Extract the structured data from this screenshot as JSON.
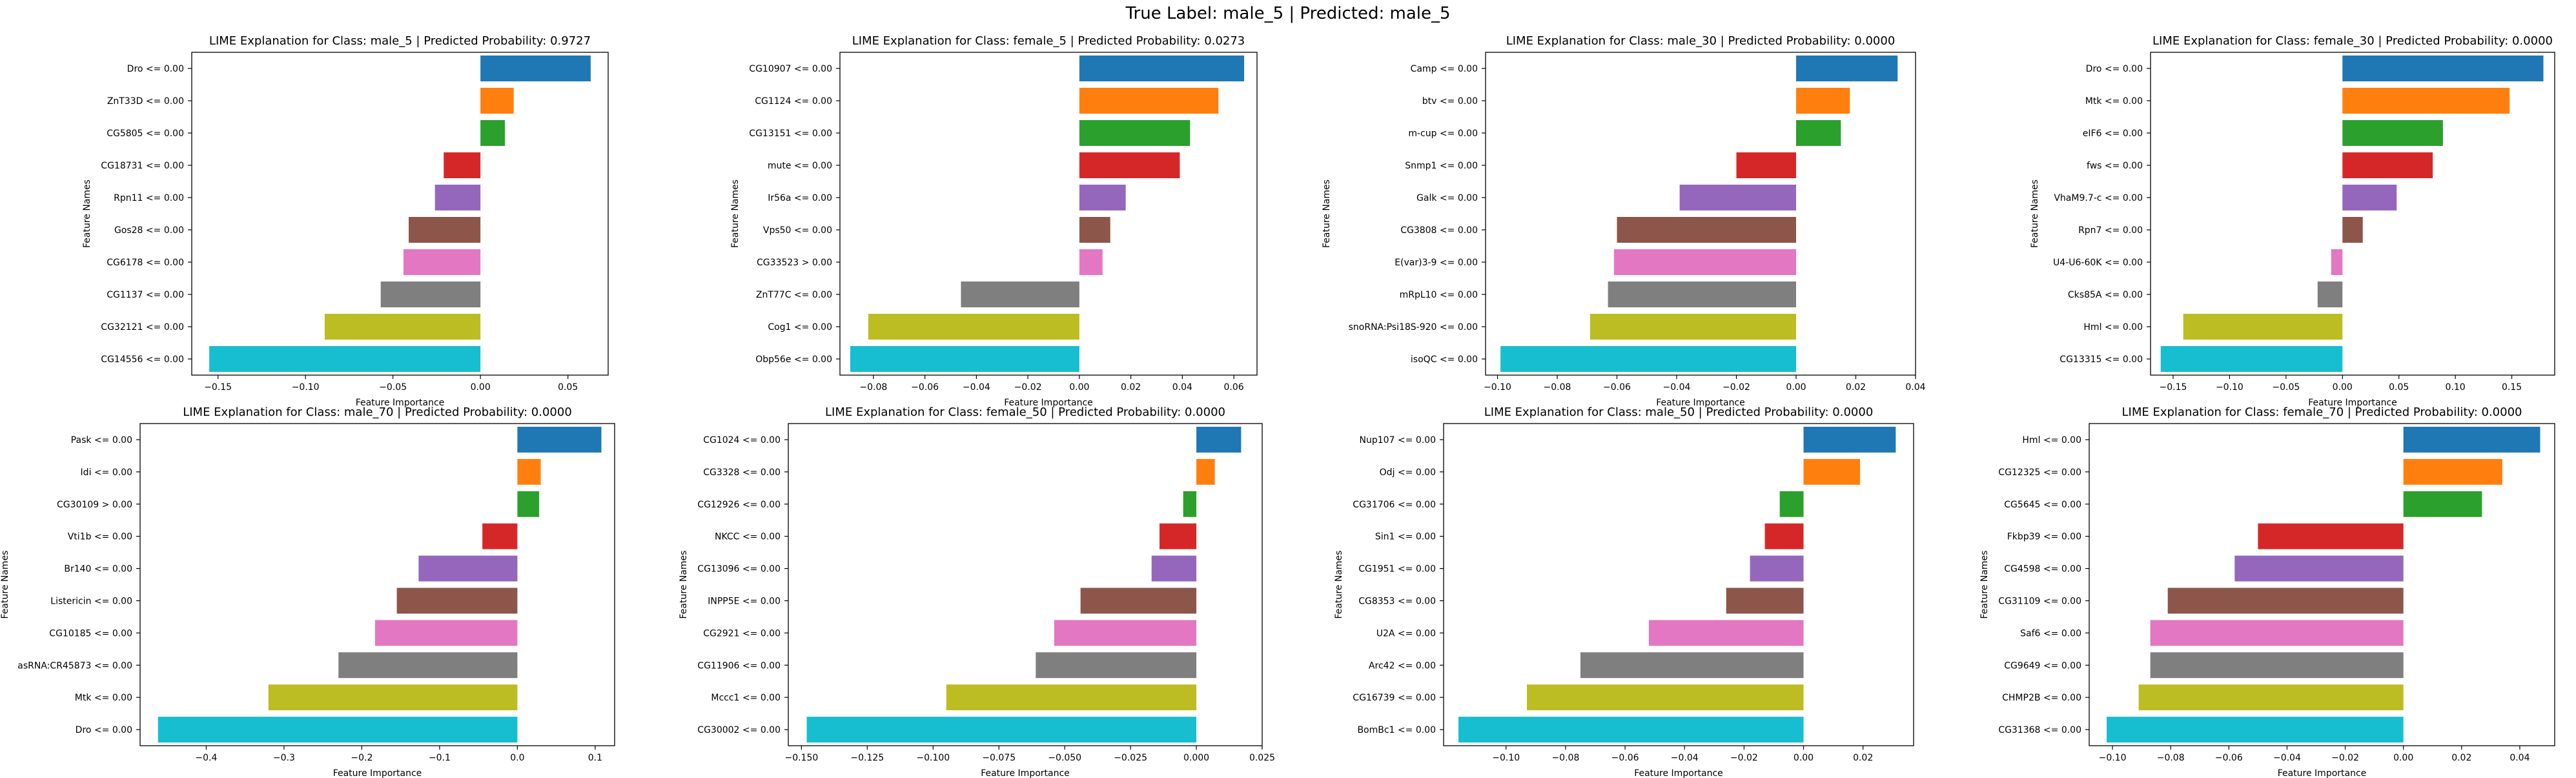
{
  "suptitle": "True Label: male_5 | Predicted: male_5",
  "chart_data": [
    {
      "type": "bar",
      "orientation": "horizontal",
      "title": "LIME Explanation for Class: male_5 | Predicted Probability: 0.9727",
      "xlabel": "Feature Importance",
      "ylabel": "Feature Names",
      "xlim": [
        -0.165,
        0.073
      ],
      "xticks": [
        -0.15,
        -0.1,
        -0.05,
        0.0,
        0.05
      ],
      "xtick_labels": [
        "−0.15",
        "−0.10",
        "−0.05",
        "0.00",
        "0.05"
      ],
      "categories": [
        "Dro <= 0.00",
        "ZnT33D <= 0.00",
        "CG5805 <= 0.00",
        "CG18731 <= 0.00",
        "Rpn11 <= 0.00",
        "Gos28 <= 0.00",
        "CG6178 <= 0.00",
        "CG1137 <= 0.00",
        "CG32121 <= 0.00",
        "CG14556 <= 0.00"
      ],
      "values": [
        0.063,
        0.019,
        0.014,
        -0.021,
        -0.026,
        -0.041,
        -0.044,
        -0.057,
        -0.089,
        -0.155
      ],
      "colors": [
        "#1f77b4",
        "#ff7f0e",
        "#2ca02c",
        "#d62728",
        "#9467bd",
        "#8c564b",
        "#e377c2",
        "#7f7f7f",
        "#bcbd22",
        "#17becf"
      ]
    },
    {
      "type": "bar",
      "orientation": "horizontal",
      "title": "LIME Explanation for Class: female_5 | Predicted Probability: 0.0273",
      "xlabel": "Feature Importance",
      "ylabel": "Feature Names",
      "xlim": [
        -0.093,
        0.069
      ],
      "xticks": [
        -0.08,
        -0.06,
        -0.04,
        -0.02,
        0.0,
        0.02,
        0.04,
        0.06
      ],
      "xtick_labels": [
        "−0.08",
        "−0.06",
        "−0.04",
        "−0.02",
        "0.00",
        "0.02",
        "0.04",
        "0.06"
      ],
      "categories": [
        "CG10907 <= 0.00",
        "CG1124 <= 0.00",
        "CG13151 <= 0.00",
        "mute <= 0.00",
        "Ir56a <= 0.00",
        "Vps50 <= 0.00",
        "CG33523 > 0.00",
        "ZnT77C <= 0.00",
        "Cog1 <= 0.00",
        "Obp56e <= 0.00"
      ],
      "values": [
        0.064,
        0.054,
        0.043,
        0.039,
        0.018,
        0.012,
        0.009,
        -0.046,
        -0.082,
        -0.089
      ],
      "colors": [
        "#1f77b4",
        "#ff7f0e",
        "#2ca02c",
        "#d62728",
        "#9467bd",
        "#8c564b",
        "#e377c2",
        "#7f7f7f",
        "#bcbd22",
        "#17becf"
      ]
    },
    {
      "type": "bar",
      "orientation": "horizontal",
      "title": "LIME Explanation for Class: male_30 | Predicted Probability: 0.0000",
      "xlabel": "Feature Importance",
      "ylabel": "Feature Names",
      "xlim": [
        -0.104,
        0.04
      ],
      "xticks": [
        -0.1,
        -0.08,
        -0.06,
        -0.04,
        -0.02,
        0.0,
        0.02,
        0.04
      ],
      "xtick_labels": [
        "−0.10",
        "−0.08",
        "−0.06",
        "−0.04",
        "−0.02",
        "0.00",
        "0.02",
        "0.04"
      ],
      "categories": [
        "Camp <= 0.00",
        "btv <= 0.00",
        "m-cup <= 0.00",
        "Snmp1 <= 0.00",
        "Galk <= 0.00",
        "CG3808 <= 0.00",
        "E(var)3-9 <= 0.00",
        "mRpL10 <= 0.00",
        "snoRNA:Psi18S-920 <= 0.00",
        "isoQC <= 0.00"
      ],
      "values": [
        0.034,
        0.018,
        0.015,
        -0.02,
        -0.039,
        -0.06,
        -0.061,
        -0.063,
        -0.069,
        -0.099
      ],
      "colors": [
        "#1f77b4",
        "#ff7f0e",
        "#2ca02c",
        "#d62728",
        "#9467bd",
        "#8c564b",
        "#e377c2",
        "#7f7f7f",
        "#bcbd22",
        "#17becf"
      ]
    },
    {
      "type": "bar",
      "orientation": "horizontal",
      "title": "LIME Explanation for Class: female_30 | Predicted Probability: 0.0000",
      "xlabel": "Feature Importance",
      "ylabel": "Feature Names",
      "xlim": [
        -0.17,
        0.188
      ],
      "xticks": [
        -0.15,
        -0.1,
        -0.05,
        0.0,
        0.05,
        0.1,
        0.15
      ],
      "xtick_labels": [
        "−0.15",
        "−0.10",
        "−0.05",
        "0.00",
        "0.05",
        "0.10",
        "0.15"
      ],
      "categories": [
        "Dro <= 0.00",
        "Mtk <= 0.00",
        "eIF6 <= 0.00",
        "fws <= 0.00",
        "VhaM9.7-c <= 0.00",
        "Rpn7 <= 0.00",
        "U4-U6-60K <= 0.00",
        "Cks85A <= 0.00",
        "Hml <= 0.00",
        "CG13315 <= 0.00"
      ],
      "values": [
        0.178,
        0.148,
        0.089,
        0.08,
        0.048,
        0.018,
        -0.01,
        -0.022,
        -0.141,
        -0.161
      ],
      "colors": [
        "#1f77b4",
        "#ff7f0e",
        "#2ca02c",
        "#d62728",
        "#9467bd",
        "#8c564b",
        "#e377c2",
        "#7f7f7f",
        "#bcbd22",
        "#17becf"
      ]
    },
    {
      "type": "bar",
      "orientation": "horizontal",
      "title": "LIME Explanation for Class: male_70 | Predicted Probability: 0.0000",
      "xlabel": "Feature Importance",
      "ylabel": "Feature Names",
      "xlim": [
        -0.485,
        0.125
      ],
      "xticks": [
        -0.4,
        -0.3,
        -0.2,
        -0.1,
        0.0,
        0.1
      ],
      "xtick_labels": [
        "−0.4",
        "−0.3",
        "−0.2",
        "−0.1",
        "0.0",
        "0.1"
      ],
      "categories": [
        "Pask <= 0.00",
        "Idi <= 0.00",
        "CG30109 > 0.00",
        "Vti1b <= 0.00",
        "Br140 <= 0.00",
        "Listericin <= 0.00",
        "CG10185 <= 0.00",
        "asRNA:CR45873 <= 0.00",
        "Mtk <= 0.00",
        "Dro <= 0.00"
      ],
      "values": [
        0.108,
        0.03,
        0.028,
        -0.045,
        -0.127,
        -0.155,
        -0.183,
        -0.23,
        -0.32,
        -0.462
      ],
      "colors": [
        "#1f77b4",
        "#ff7f0e",
        "#2ca02c",
        "#d62728",
        "#9467bd",
        "#8c564b",
        "#e377c2",
        "#7f7f7f",
        "#bcbd22",
        "#17becf"
      ]
    },
    {
      "type": "bar",
      "orientation": "horizontal",
      "title": "LIME Explanation for Class: female_50 | Predicted Probability: 0.0000",
      "xlabel": "Feature Importance",
      "ylabel": "Feature Names",
      "xlim": [
        -0.155,
        0.025
      ],
      "xticks": [
        -0.15,
        -0.125,
        -0.1,
        -0.075,
        -0.05,
        -0.025,
        0.0,
        0.025
      ],
      "xtick_labels": [
        "−0.150",
        "−0.125",
        "−0.100",
        "−0.075",
        "−0.050",
        "−0.025",
        "0.000",
        "0.025"
      ],
      "categories": [
        "CG1024 <= 0.00",
        "CG3328 <= 0.00",
        "CG12926 <= 0.00",
        "NKCC <= 0.00",
        "CG13096 <= 0.00",
        "INPP5E <= 0.00",
        "CG2921 <= 0.00",
        "CG11906 <= 0.00",
        "Mccc1 <= 0.00",
        "CG30002 <= 0.00"
      ],
      "values": [
        0.017,
        0.007,
        -0.005,
        -0.014,
        -0.017,
        -0.044,
        -0.054,
        -0.061,
        -0.095,
        -0.148
      ],
      "colors": [
        "#1f77b4",
        "#ff7f0e",
        "#2ca02c",
        "#d62728",
        "#9467bd",
        "#8c564b",
        "#e377c2",
        "#7f7f7f",
        "#bcbd22",
        "#17becf"
      ]
    },
    {
      "type": "bar",
      "orientation": "horizontal",
      "title": "LIME Explanation for Class: male_50 | Predicted Probability: 0.0000",
      "xlabel": "Feature Importance",
      "ylabel": "Feature Names",
      "xlim": [
        -0.121,
        0.037
      ],
      "xticks": [
        -0.1,
        -0.08,
        -0.06,
        -0.04,
        -0.02,
        0.0,
        0.02
      ],
      "xtick_labels": [
        "−0.10",
        "−0.08",
        "−0.06",
        "−0.04",
        "−0.02",
        "0.00",
        "0.02"
      ],
      "categories": [
        "Nup107 <= 0.00",
        "Odj <= 0.00",
        "CG31706 <= 0.00",
        "Sin1 <= 0.00",
        "CG1951 <= 0.00",
        "CG8353 <= 0.00",
        "U2A <= 0.00",
        "Arc42 <= 0.00",
        "CG16739 <= 0.00",
        "BomBc1 <= 0.00"
      ],
      "values": [
        0.031,
        0.019,
        -0.008,
        -0.013,
        -0.018,
        -0.026,
        -0.052,
        -0.075,
        -0.093,
        -0.116
      ],
      "colors": [
        "#1f77b4",
        "#ff7f0e",
        "#2ca02c",
        "#d62728",
        "#9467bd",
        "#8c564b",
        "#e377c2",
        "#7f7f7f",
        "#bcbd22",
        "#17becf"
      ]
    },
    {
      "type": "bar",
      "orientation": "horizontal",
      "title": "LIME Explanation for Class: female_70 | Predicted Probability: 0.0000",
      "xlabel": "Feature Importance",
      "ylabel": "Feature Names",
      "xlim": [
        -0.108,
        0.052
      ],
      "xticks": [
        -0.1,
        -0.08,
        -0.06,
        -0.04,
        -0.02,
        0.0,
        0.02,
        0.04
      ],
      "xtick_labels": [
        "−0.10",
        "−0.08",
        "−0.06",
        "−0.04",
        "−0.02",
        "0.00",
        "0.02",
        "0.04"
      ],
      "categories": [
        "Hml <= 0.00",
        "CG12325 <= 0.00",
        "CG5645 <= 0.00",
        "Fkbp39 <= 0.00",
        "CG4598 <= 0.00",
        "CG31109 <= 0.00",
        "Saf6 <= 0.00",
        "CG9649 <= 0.00",
        "CHMP2B <= 0.00",
        "CG31368 <= 0.00"
      ],
      "values": [
        0.047,
        0.034,
        0.027,
        -0.05,
        -0.058,
        -0.081,
        -0.087,
        -0.087,
        -0.091,
        -0.102
      ],
      "colors": [
        "#1f77b4",
        "#ff7f0e",
        "#2ca02c",
        "#d62728",
        "#9467bd",
        "#8c564b",
        "#e377c2",
        "#7f7f7f",
        "#bcbd22",
        "#17becf"
      ]
    }
  ]
}
